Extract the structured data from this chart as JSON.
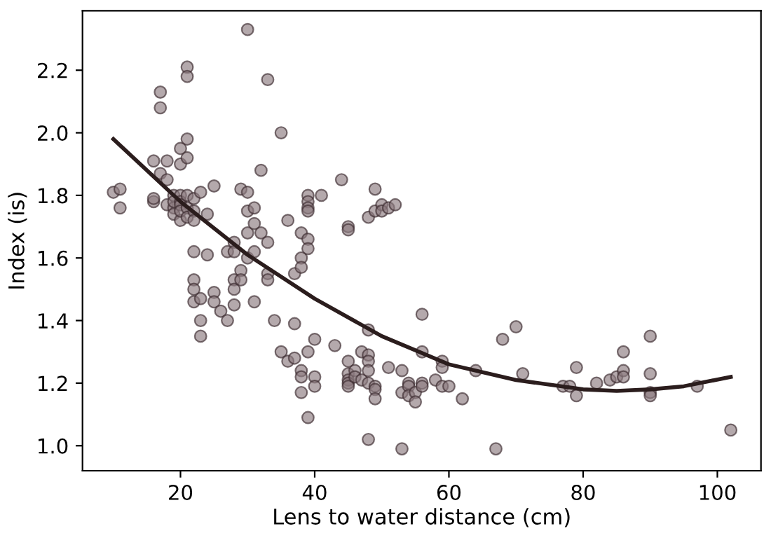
{
  "chart_data": {
    "type": "scatter",
    "xlabel": "Lens to water distance (cm)",
    "ylabel": "Index (is)",
    "xlim": [
      5.4,
      106.5
    ],
    "xticks": [
      20,
      40,
      60,
      80,
      100
    ],
    "ylim": [
      0.92,
      2.39
    ],
    "yticks": [
      {
        "value": 1.0,
        "label": "1.0"
      },
      {
        "value": 1.2,
        "label": "1.2"
      },
      {
        "value": 1.4,
        "label": "1.4"
      },
      {
        "value": 1.6,
        "label": "1.6"
      },
      {
        "value": 1.8,
        "label": "1.8"
      },
      {
        "value": 2.0,
        "label": "2.0"
      },
      {
        "value": 2.2,
        "label": "2.2"
      }
    ],
    "grid": false,
    "legend": false,
    "marker": "circle",
    "series": [
      {
        "color": "#8c7b80",
        "x": [
          10,
          11,
          11,
          16,
          16,
          16,
          17,
          17,
          17,
          18,
          18,
          18,
          19,
          19,
          19,
          19,
          20,
          20,
          20,
          20,
          20,
          20,
          20,
          21,
          21,
          21,
          21,
          21,
          21,
          21,
          22,
          22,
          22,
          22,
          22,
          22,
          22,
          23,
          23,
          23,
          23,
          24,
          24,
          25,
          25,
          25,
          26,
          27,
          27,
          28,
          28,
          28,
          28,
          28,
          29,
          29,
          29,
          30,
          30,
          30,
          30,
          30,
          31,
          31,
          31,
          31,
          32,
          32,
          33,
          33,
          33,
          33,
          34,
          35,
          35,
          36,
          36,
          37,
          37,
          37,
          38,
          38,
          38,
          38,
          38,
          38,
          39,
          39,
          39,
          39,
          39,
          39,
          39,
          39,
          40,
          40,
          40,
          41,
          43,
          44,
          45,
          45,
          45,
          45,
          45,
          45,
          45,
          46,
          46,
          47,
          47,
          48,
          48,
          48,
          48,
          48,
          48,
          48,
          49,
          49,
          49,
          49,
          49,
          50,
          50,
          51,
          51,
          52,
          53,
          53,
          53,
          54,
          54,
          54,
          55,
          55,
          56,
          56,
          56,
          56,
          58,
          59,
          59,
          59,
          60,
          62,
          64,
          67,
          68,
          70,
          71,
          77,
          78,
          79,
          79,
          82,
          84,
          85,
          86,
          86,
          86,
          90,
          90,
          90,
          90,
          97,
          102
        ],
        "values": [
          1.81,
          1.82,
          1.76,
          1.91,
          1.78,
          1.79,
          2.13,
          2.08,
          1.87,
          1.85,
          1.77,
          1.91,
          1.8,
          1.76,
          1.74,
          1.78,
          1.95,
          1.9,
          1.8,
          1.78,
          1.77,
          1.72,
          1.75,
          2.21,
          2.18,
          1.98,
          1.92,
          1.8,
          1.76,
          1.73,
          1.79,
          1.75,
          1.72,
          1.62,
          1.53,
          1.5,
          1.46,
          1.81,
          1.47,
          1.4,
          1.35,
          1.74,
          1.61,
          1.83,
          1.49,
          1.46,
          1.43,
          1.62,
          1.4,
          1.65,
          1.62,
          1.53,
          1.5,
          1.45,
          1.82,
          1.56,
          1.53,
          2.33,
          1.81,
          1.75,
          1.68,
          1.6,
          1.71,
          1.76,
          1.62,
          1.46,
          1.88,
          1.68,
          2.17,
          1.65,
          1.55,
          1.53,
          1.4,
          2.0,
          1.3,
          1.72,
          1.27,
          1.55,
          1.28,
          1.39,
          1.68,
          1.6,
          1.57,
          1.24,
          1.22,
          1.17,
          1.8,
          1.78,
          1.76,
          1.75,
          1.66,
          1.63,
          1.3,
          1.09,
          1.34,
          1.22,
          1.19,
          1.8,
          1.32,
          1.85,
          1.7,
          1.69,
          1.27,
          1.23,
          1.21,
          1.2,
          1.19,
          1.24,
          1.22,
          1.3,
          1.21,
          1.73,
          1.37,
          1.29,
          1.27,
          1.24,
          1.2,
          1.02,
          1.82,
          1.75,
          1.19,
          1.18,
          1.15,
          1.77,
          1.75,
          1.76,
          1.25,
          1.77,
          1.24,
          1.17,
          0.99,
          1.2,
          1.19,
          1.16,
          1.17,
          1.14,
          1.42,
          1.3,
          1.2,
          1.19,
          1.21,
          1.27,
          1.25,
          1.19,
          1.19,
          1.15,
          1.24,
          0.99,
          1.34,
          1.38,
          1.23,
          1.19,
          1.19,
          1.25,
          1.16,
          1.2,
          1.21,
          1.22,
          1.3,
          1.24,
          1.22,
          1.35,
          1.23,
          1.17,
          1.16,
          1.19,
          1.05
        ]
      },
      {
        "type": "line",
        "color": "#2b1d1d",
        "marker": "none",
        "line_style": "solid",
        "x": [
          10,
          20,
          30,
          40,
          50,
          60,
          70,
          80,
          85,
          90,
          95,
          102
        ],
        "values": [
          1.98,
          1.78,
          1.61,
          1.47,
          1.35,
          1.26,
          1.21,
          1.18,
          1.175,
          1.18,
          1.19,
          1.22
        ]
      }
    ]
  }
}
